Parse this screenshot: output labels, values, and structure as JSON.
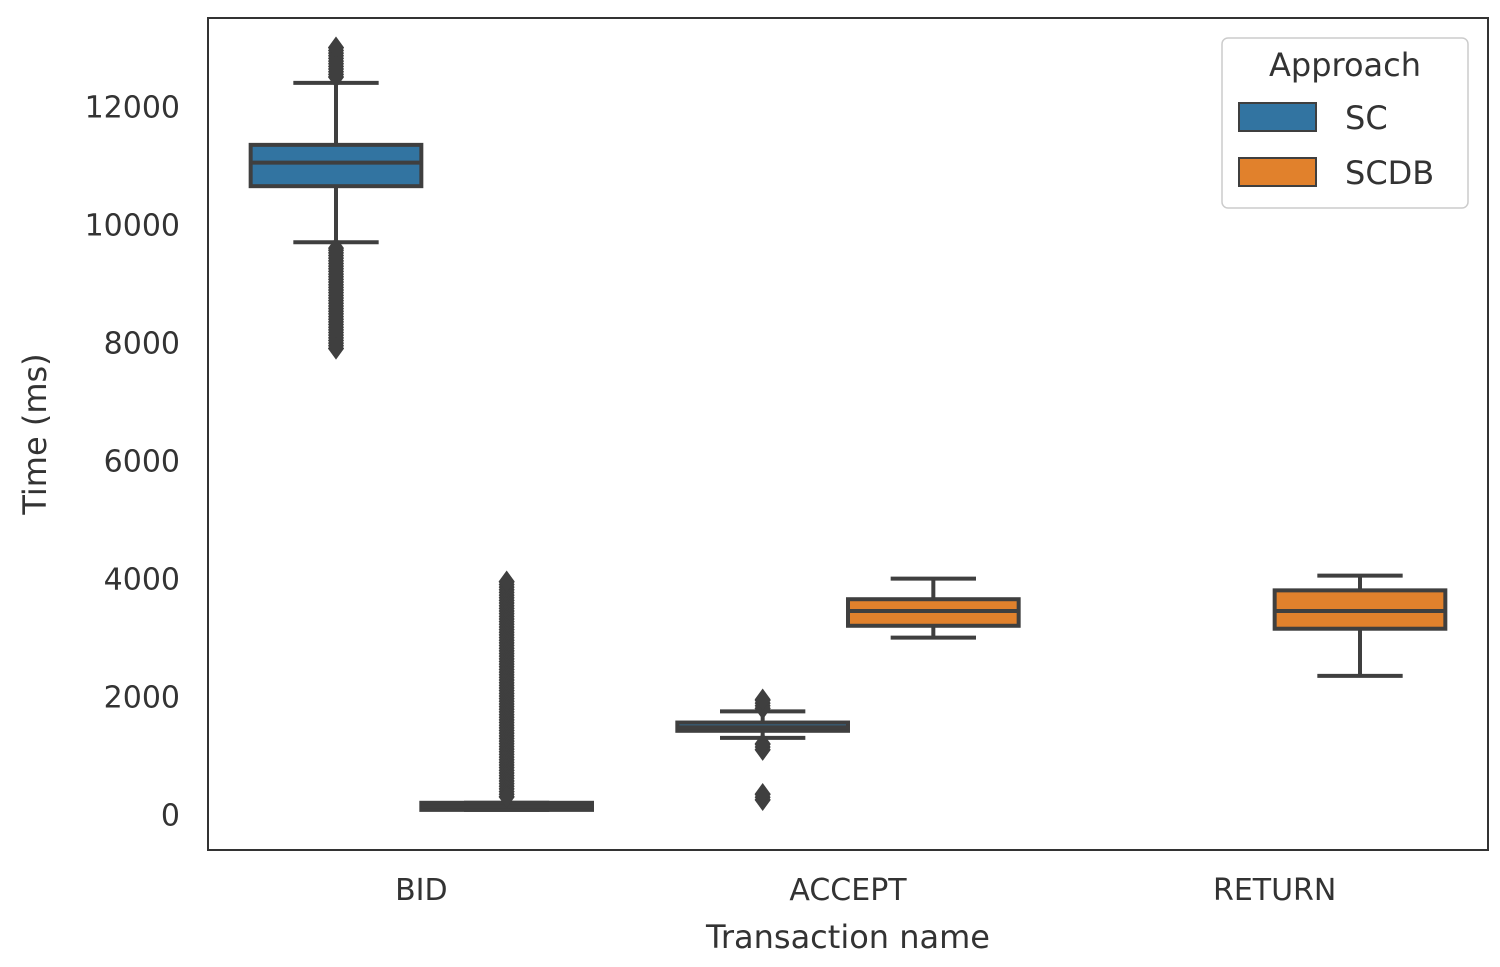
{
  "chart_data": {
    "type": "boxplot",
    "xlabel": "Transaction name",
    "ylabel": "Time (ms)",
    "ylim": [
      -600,
      13500
    ],
    "yticks": [
      0,
      2000,
      4000,
      6000,
      8000,
      10000,
      12000
    ],
    "categories": [
      "BID",
      "ACCEPT",
      "RETURN"
    ],
    "grid": false,
    "legend": {
      "title": "Approach",
      "placement": "top-right"
    },
    "series": [
      {
        "name": "SC",
        "color": "#3274a1",
        "boxes": [
          {
            "category": "BID",
            "whisker_low": 9700,
            "q1": 10650,
            "median": 11050,
            "q3": 11350,
            "whisker_high": 12400,
            "outliers_low": [
              7900,
              9600
            ],
            "outliers_high": [
              12500,
              13000
            ]
          },
          {
            "category": "ACCEPT",
            "whisker_low": 1300,
            "q1": 1420,
            "median": 1480,
            "q3": 1560,
            "whisker_high": 1750,
            "outliers_low": [
              250,
              350,
              1100,
              1200
            ],
            "outliers_high": [
              1800,
              1950
            ]
          }
        ]
      },
      {
        "name": "SCDB",
        "color": "#e1812c",
        "boxes": [
          {
            "category": "BID",
            "whisker_low": 80,
            "q1": 80,
            "median": 140,
            "q3": 200,
            "whisker_high": 200,
            "outliers_low": [],
            "outliers_high": [
              300,
              3950
            ]
          },
          {
            "category": "ACCEPT",
            "whisker_low": 3000,
            "q1": 3200,
            "median": 3450,
            "q3": 3650,
            "whisker_high": 4000,
            "outliers_low": [],
            "outliers_high": []
          },
          {
            "category": "RETURN",
            "whisker_low": 2350,
            "q1": 3150,
            "median": 3450,
            "q3": 3800,
            "whisker_high": 4050,
            "outliers_low": [],
            "outliers_high": []
          }
        ]
      }
    ]
  }
}
